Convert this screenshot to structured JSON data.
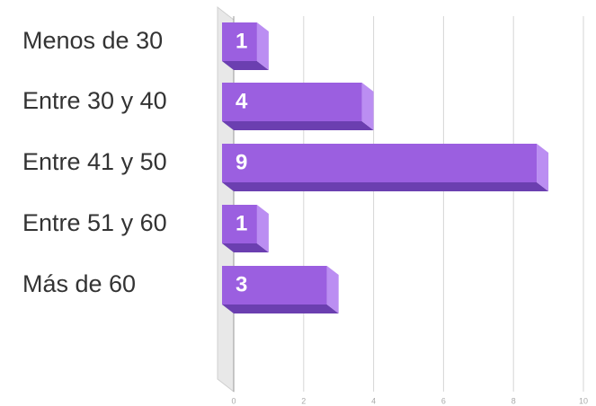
{
  "chart_data": {
    "type": "bar3d_horizontal",
    "categories": [
      "Menos de 30",
      "Entre 30 y 40",
      "Entre 41 y 50",
      "Entre 51 y 60",
      "Más de 60"
    ],
    "values": [
      1,
      4,
      9,
      1,
      3
    ],
    "color": "#9b5fe0",
    "xlim": [
      0,
      10
    ],
    "xticks": [
      0,
      2,
      4,
      6,
      8,
      10
    ],
    "grid": true
  }
}
